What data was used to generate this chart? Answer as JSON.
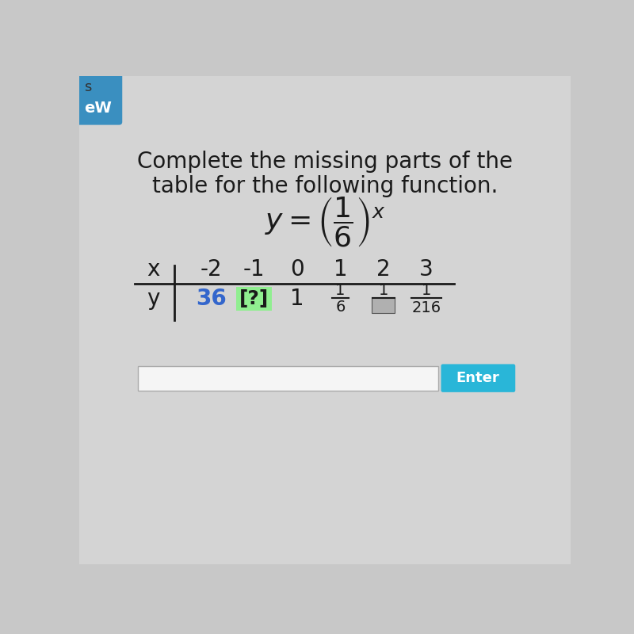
{
  "bg_color": "#c8c8c8",
  "content_bg": "#e8e8e8",
  "title_line1": "Complete the missing parts of the",
  "title_line2": "table for the following function.",
  "x_label": "x",
  "y_label": "y",
  "x_values": [
    "-2",
    "-1",
    "0",
    "1",
    "2",
    "3"
  ],
  "green_highlight_color": "#90EE90",
  "box_color": "#b0b0b0",
  "input_bar_color": "#f5f5f5",
  "enter_btn_color": "#29b6d8",
  "enter_btn_text": "Enter",
  "tab_color": "#3a8fc0",
  "tab_text": "eW",
  "value_36_color": "#3366cc",
  "text_color": "#1a1a1a"
}
